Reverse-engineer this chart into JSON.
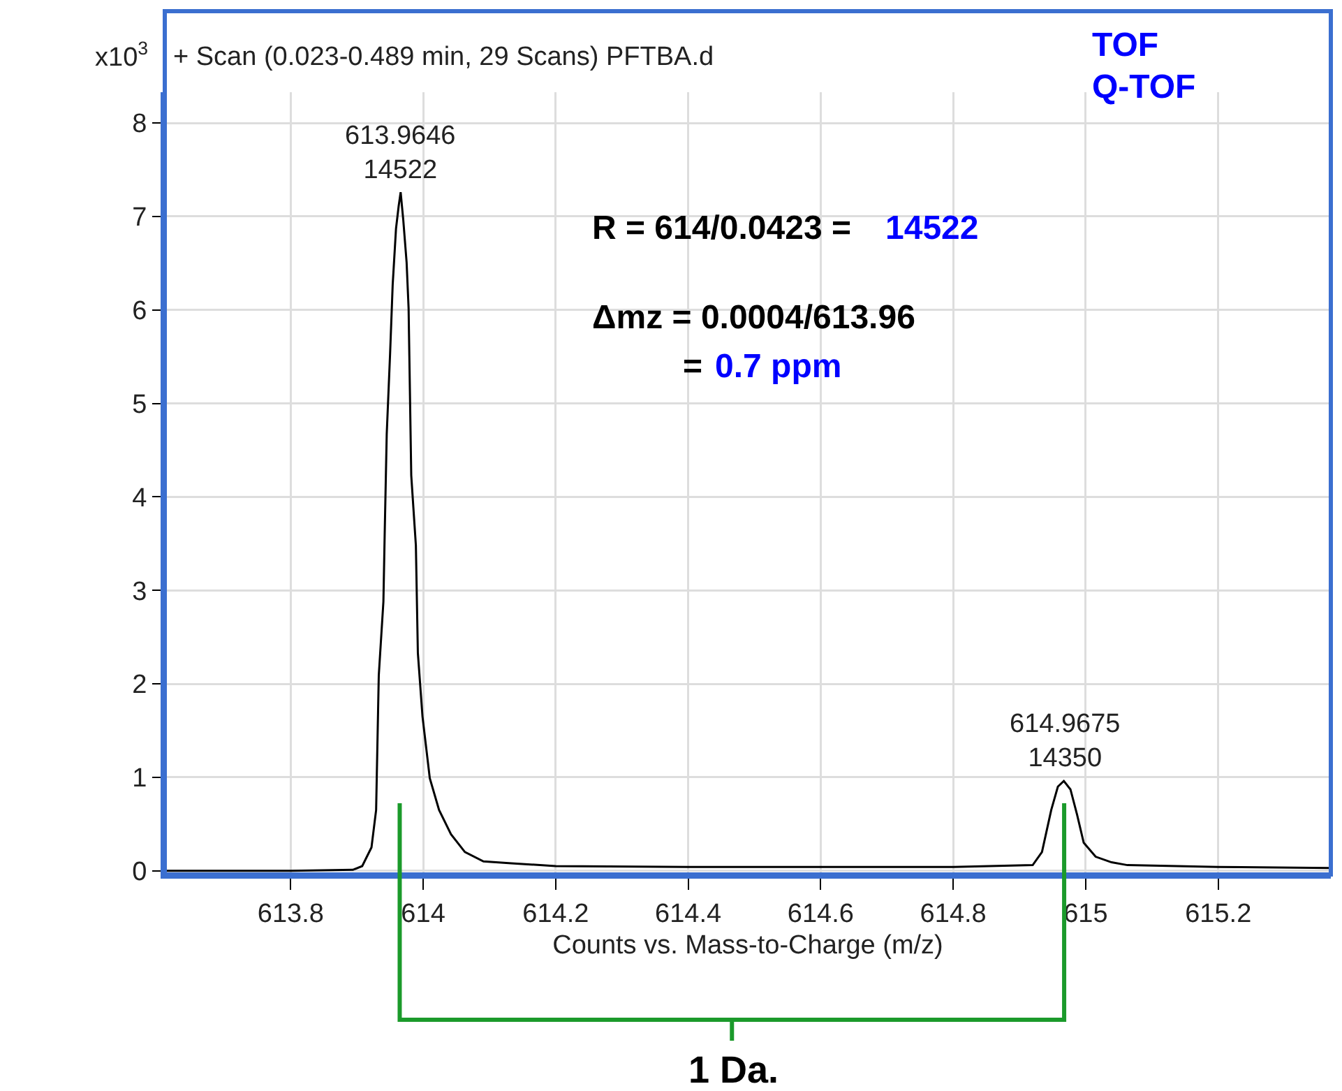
{
  "chart_data": {
    "type": "line",
    "title": "+ Scan (0.023-0.489 min, 29 Scans) PFTBA.d",
    "xlabel": "Counts vs. Mass-to-Charge (m/z)",
    "series": [
      {
        "color": "#000000",
        "x": [
          613.61,
          613.7,
          613.8,
          613.894,
          613.908,
          613.922,
          613.929,
          613.933,
          613.94,
          613.942,
          613.945,
          613.95,
          613.954,
          613.959,
          613.963,
          613.966,
          613.97,
          613.975,
          613.978,
          613.982,
          613.989,
          613.992,
          613.999,
          614.01,
          614.024,
          614.042,
          614.063,
          614.091,
          614.133,
          614.2,
          614.4,
          614.6,
          614.8,
          614.92,
          614.934,
          614.948,
          614.958,
          614.967,
          614.977,
          614.987,
          614.997,
          615.015,
          615.039,
          615.063,
          615.2,
          615.37
        ],
        "values": [
          0,
          0,
          0,
          0.01,
          0.05,
          0.25,
          0.65,
          2.09,
          2.88,
          3.63,
          4.67,
          5.52,
          6.27,
          6.87,
          7.11,
          7.26,
          6.96,
          6.51,
          6.02,
          4.23,
          3.48,
          2.33,
          1.65,
          0.99,
          0.65,
          0.39,
          0.2,
          0.1,
          0.08,
          0.05,
          0.04,
          0.04,
          0.04,
          0.06,
          0.2,
          0.65,
          0.9,
          0.96,
          0.87,
          0.6,
          0.3,
          0.15,
          0.09,
          0.06,
          0.04,
          0.03
        ]
      }
    ],
    "xlim": [
      613.61,
      615.37
    ],
    "xticks": [
      613.8,
      614,
      614.2,
      614.4,
      614.6,
      614.8,
      615,
      615.2
    ],
    "ylim": [
      -0.04,
      8.33
    ],
    "yticks": [
      0,
      1,
      2,
      3,
      4,
      5,
      6,
      7,
      8
    ],
    "grid": true,
    "marker": "none",
    "line_style": "solid",
    "annotations": [
      {
        "text": "613.9646\n14522",
        "x": 613.9646,
        "y": 7.26
      },
      {
        "text": "614.9675\n14350",
        "x": 614.9675,
        "y": 0.96
      },
      "R = 614/0.0423 =",
      "14522",
      "Δmz = 0.0004/613.96",
      "=",
      "0.7 ppm",
      "TOF",
      "Q-TOF",
      "x10$^{3}$",
      "1 Da."
    ]
  }
}
